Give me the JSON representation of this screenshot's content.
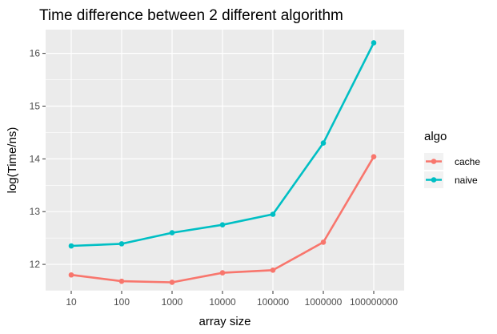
{
  "chart_data": {
    "type": "line",
    "title": "Time difference between 2 different algorithm",
    "xlabel": "array size",
    "ylabel": "log(Time/ns)",
    "categories": [
      "10",
      "100",
      "1000",
      "10000",
      "100000",
      "1000000",
      "100000000"
    ],
    "ylim": [
      11.5,
      16.45
    ],
    "yticks": [
      12,
      13,
      14,
      15,
      16
    ],
    "grid": true,
    "legend": {
      "title": "algo",
      "position": "right"
    },
    "series": [
      {
        "name": "cache",
        "color": "#F8766D",
        "values": [
          11.8,
          11.68,
          11.66,
          11.84,
          11.89,
          12.42,
          14.04
        ]
      },
      {
        "name": "naive",
        "color": "#00BFC4",
        "values": [
          12.35,
          12.39,
          12.6,
          12.75,
          12.95,
          14.3,
          16.2
        ]
      }
    ]
  }
}
